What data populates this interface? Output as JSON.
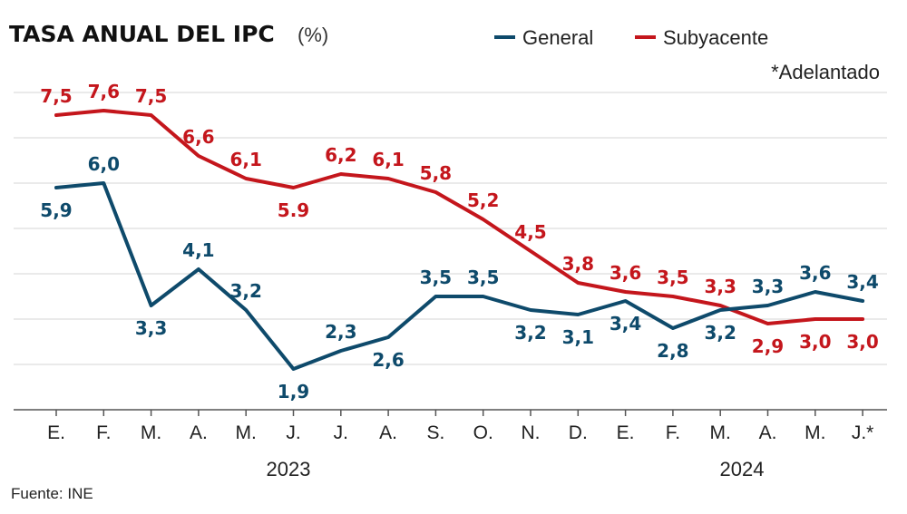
{
  "chart_data": {
    "type": "line",
    "title": "TASA ANUAL DEL IPC",
    "subtitle": "(%)",
    "note": "*Adelantado",
    "source": "Fuente: INE",
    "categories": [
      "E.",
      "F.",
      "M.",
      "A.",
      "M.",
      "J.",
      "J.",
      "A.",
      "S.",
      "O.",
      "N.",
      "D.",
      "E.",
      "F.",
      "M.",
      "A.",
      "M.",
      "J.*"
    ],
    "years": [
      "2023",
      "2024"
    ],
    "ylim": [
      1.0,
      8.0
    ],
    "grid": true,
    "series": [
      {
        "name": "General",
        "color": "#0e4a6b",
        "values": [
          5.9,
          6.0,
          3.3,
          4.1,
          3.2,
          1.9,
          2.3,
          2.6,
          3.5,
          3.5,
          3.2,
          3.1,
          3.4,
          2.8,
          3.2,
          3.3,
          3.6,
          3.4
        ],
        "labels": [
          "5,9",
          "6,0",
          "3,3",
          "4,1",
          "3,2",
          "1,9",
          "2,3",
          "2,6",
          "3,5",
          "3,5",
          "3,2",
          "3,1",
          "3,4",
          "2,8",
          "3,2",
          "3,3",
          "3,6",
          "3,4"
        ]
      },
      {
        "name": "Subyacente",
        "color": "#c4161c",
        "values": [
          7.5,
          7.6,
          7.5,
          6.6,
          6.1,
          5.9,
          6.2,
          6.1,
          5.8,
          5.2,
          4.5,
          3.8,
          3.6,
          3.5,
          3.3,
          2.9,
          3.0,
          3.0
        ],
        "labels": [
          "7,5",
          "7,6",
          "7,5",
          "6,6",
          "6,1",
          "5.9",
          "6,2",
          "6,1",
          "5,8",
          "5,2",
          "4,5",
          "3,8",
          "3,6",
          "3,5",
          "3,3",
          "2,9",
          "3,0",
          "3,0"
        ]
      }
    ]
  }
}
